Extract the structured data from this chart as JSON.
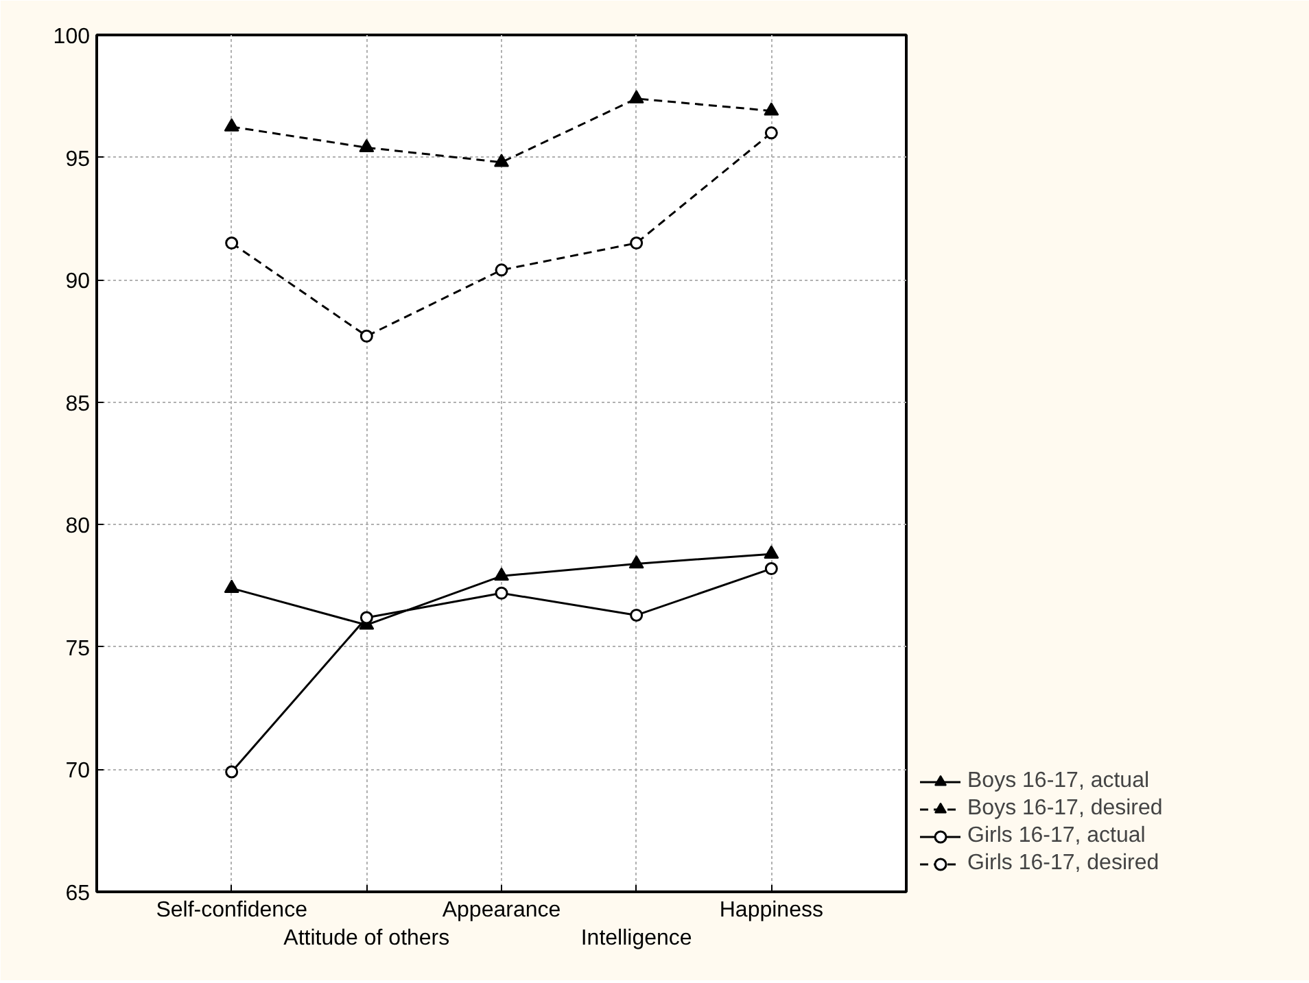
{
  "chart_data": {
    "type": "line",
    "categories": [
      "Self-confidence",
      "Attitude of others",
      "Appearance",
      "Intelligence",
      "Happiness"
    ],
    "series": [
      {
        "name": "Boys 16-17, actual",
        "color": "#000000",
        "marker": "triangle",
        "line_style": "solid",
        "values": [
          77.4,
          75.9,
          77.9,
          78.4,
          78.8
        ]
      },
      {
        "name": "Boys 16-17, desired",
        "color": "#000000",
        "marker": "triangle",
        "line_style": "dashed",
        "values": [
          96.25,
          95.4,
          94.8,
          97.4,
          96.9
        ]
      },
      {
        "name": "Girls 16-17, actual",
        "color": "#000000",
        "marker": "circle",
        "line_style": "solid",
        "values": [
          69.9,
          76.2,
          77.2,
          76.3,
          78.2
        ]
      },
      {
        "name": "Girls 16-17, desired",
        "color": "#000000",
        "marker": "circle",
        "line_style": "dashed",
        "values": [
          91.5,
          87.7,
          90.4,
          91.5,
          96.0
        ]
      }
    ],
    "ylim": [
      65,
      100
    ],
    "yticks": [
      65,
      70,
      75,
      80,
      85,
      90,
      95,
      100
    ],
    "grid": true,
    "legend": "bottom right"
  }
}
